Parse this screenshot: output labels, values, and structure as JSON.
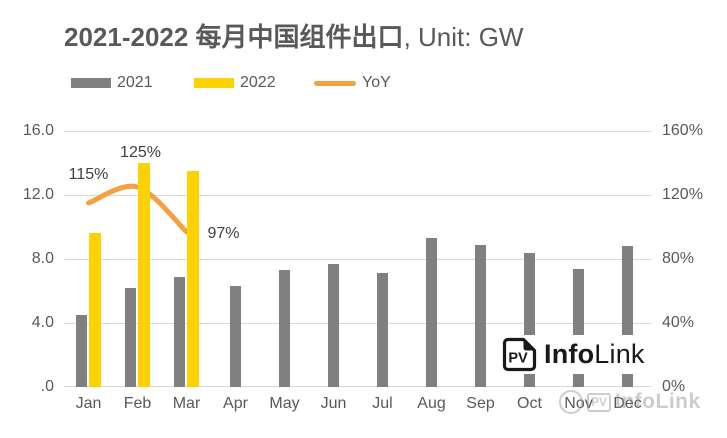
{
  "title": {
    "main": "2021-2022 每月中国组件出口",
    "suffix": ", Unit: GW"
  },
  "colors": {
    "bar_2021": "#808080",
    "bar_2022": "#FFD100",
    "line_yoy": "#F79F43",
    "grid": "#D9D9D9",
    "axis_text": "#595959",
    "data_label_text": "#404040",
    "logo": "#191919"
  },
  "chart_data": {
    "type": "bar",
    "title": "2021-2022 每月中国组件出口, Unit: GW",
    "categories": [
      "Jan",
      "Feb",
      "Mar",
      "Apr",
      "May",
      "Jun",
      "Jul",
      "Aug",
      "Sep",
      "Oct",
      "Nov",
      "Dec"
    ],
    "series": [
      {
        "name": "2021",
        "type": "bar",
        "axis": "left",
        "values": [
          4.5,
          6.2,
          6.9,
          6.3,
          7.3,
          7.7,
          7.1,
          9.3,
          8.9,
          8.4,
          7.4,
          8.8
        ]
      },
      {
        "name": "2022",
        "type": "bar",
        "axis": "left",
        "values": [
          9.6,
          14.0,
          13.5,
          null,
          null,
          null,
          null,
          null,
          null,
          null,
          null,
          null
        ]
      },
      {
        "name": "YoY",
        "type": "line",
        "axis": "right",
        "unit": "%",
        "values": [
          115,
          125,
          97,
          null,
          null,
          null,
          null,
          null,
          null,
          null,
          null,
          null
        ],
        "point_labels": [
          "115%",
          "125%",
          "97%",
          null,
          null,
          null,
          null,
          null,
          null,
          null,
          null,
          null
        ]
      }
    ],
    "left_axis": {
      "min": 0,
      "max": 16,
      "step": 4,
      "ticks": [
        "16.0",
        "12.0",
        "8.0",
        "4.0",
        ".0"
      ]
    },
    "right_axis": {
      "min": 0,
      "max": 160,
      "step": 40,
      "ticks": [
        "160%",
        "120%",
        "80%",
        "40%",
        "0%"
      ]
    },
    "grid": true,
    "legend_position": "top-left"
  },
  "watermark": {
    "logo": {
      "pv": "PV",
      "bold": "Info",
      "light": "Link"
    },
    "faint": {
      "pv": "PV",
      "text": "InfoLink"
    }
  }
}
